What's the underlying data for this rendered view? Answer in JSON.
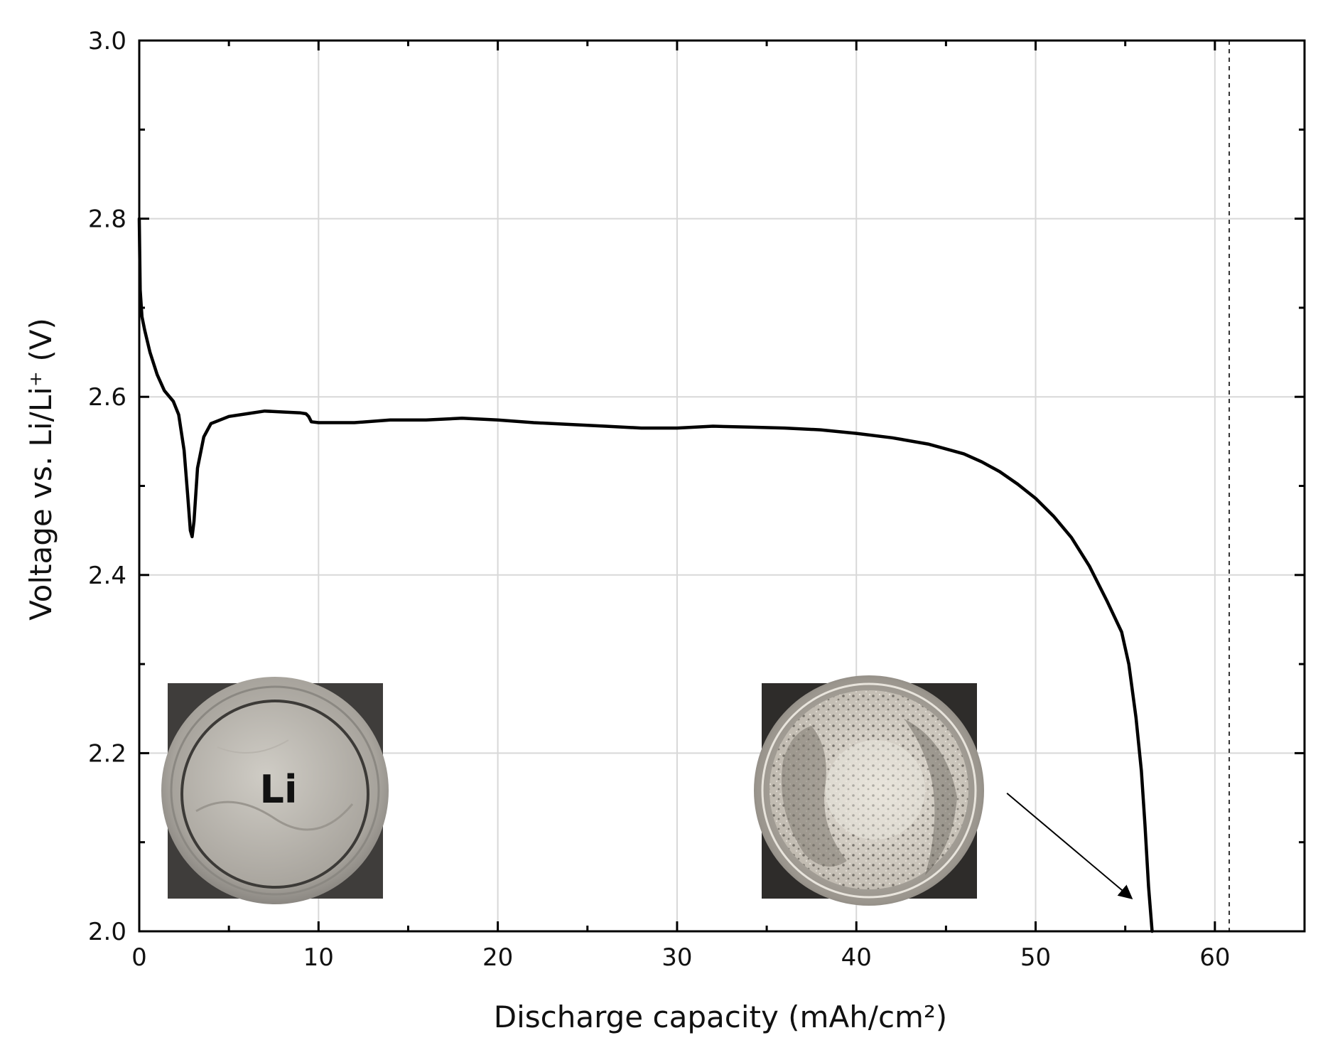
{
  "chart_data": {
    "type": "line",
    "xlabel": "Discharge capacity (mAh/cm²)",
    "ylabel": "Voltage vs. Li/Li⁺ (V)",
    "xlim": [
      0,
      65
    ],
    "ylim": [
      2.0,
      3.0
    ],
    "x_ticks": [
      0,
      10,
      20,
      30,
      40,
      50,
      60
    ],
    "x_tick_labels": [
      "0",
      "10",
      "20",
      "30",
      "40",
      "50",
      "60"
    ],
    "y_ticks": [
      2.0,
      2.2,
      2.4,
      2.6,
      2.8,
      3.0
    ],
    "y_tick_labels": [
      "2.0",
      "2.2",
      "2.4",
      "2.6",
      "2.8",
      "3.0"
    ],
    "grid": true,
    "series": [
      {
        "color": "#000000",
        "points": [
          [
            0.0,
            2.8
          ],
          [
            0.05,
            2.72
          ],
          [
            0.15,
            2.69
          ],
          [
            0.3,
            2.675
          ],
          [
            0.6,
            2.65
          ],
          [
            1.0,
            2.625
          ],
          [
            1.4,
            2.607
          ],
          [
            1.9,
            2.595
          ],
          [
            2.2,
            2.58
          ],
          [
            2.5,
            2.54
          ],
          [
            2.7,
            2.49
          ],
          [
            2.85,
            2.45
          ],
          [
            2.95,
            2.443
          ],
          [
            3.05,
            2.46
          ],
          [
            3.25,
            2.52
          ],
          [
            3.6,
            2.555
          ],
          [
            4.0,
            2.57
          ],
          [
            5.0,
            2.578
          ],
          [
            6.0,
            2.581
          ],
          [
            7.0,
            2.584
          ],
          [
            8.0,
            2.583
          ],
          [
            9.0,
            2.582
          ],
          [
            9.3,
            2.581
          ],
          [
            9.45,
            2.578
          ],
          [
            9.6,
            2.572
          ],
          [
            10,
            2.571
          ],
          [
            12,
            2.571
          ],
          [
            14,
            2.574
          ],
          [
            16,
            2.574
          ],
          [
            18,
            2.576
          ],
          [
            20,
            2.574
          ],
          [
            22,
            2.571
          ],
          [
            24,
            2.569
          ],
          [
            26,
            2.567
          ],
          [
            28,
            2.565
          ],
          [
            30,
            2.565
          ],
          [
            32,
            2.567
          ],
          [
            34,
            2.566
          ],
          [
            36,
            2.565
          ],
          [
            38,
            2.563
          ],
          [
            40,
            2.559
          ],
          [
            42,
            2.554
          ],
          [
            44,
            2.547
          ],
          [
            46,
            2.536
          ],
          [
            47,
            2.527
          ],
          [
            48,
            2.516
          ],
          [
            49,
            2.502
          ],
          [
            50,
            2.486
          ],
          [
            51,
            2.466
          ],
          [
            52,
            2.442
          ],
          [
            53,
            2.41
          ],
          [
            54,
            2.37
          ],
          [
            54.8,
            2.336
          ],
          [
            55.2,
            2.3
          ],
          [
            55.6,
            2.24
          ],
          [
            55.9,
            2.18
          ],
          [
            56.1,
            2.12
          ],
          [
            56.3,
            2.05
          ],
          [
            56.5,
            2.0
          ]
        ]
      }
    ],
    "reference_line_x": 60.8,
    "annotations": [
      {
        "type": "arrow",
        "from": [
          48.4,
          2.155
        ],
        "to": [
          55.3,
          2.038
        ]
      }
    ],
    "insets": [
      {
        "name": "pristine-lithium-photo",
        "label": "Li"
      },
      {
        "name": "discharged-lithium-photo",
        "label": ""
      }
    ]
  }
}
